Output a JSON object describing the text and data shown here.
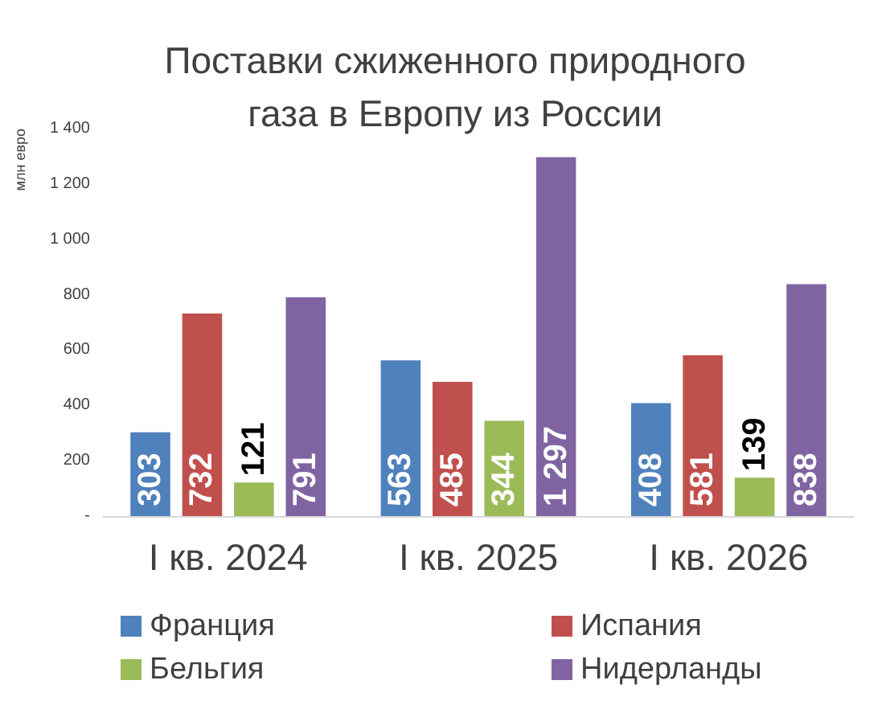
{
  "chart_data": {
    "type": "bar",
    "title": "Поставки сжиженного природного\nгаза в Европу из России",
    "ylabel": "млн евро",
    "categories": [
      "I кв. 2024",
      "I кв. 2025",
      "I кв. 2026"
    ],
    "series": [
      {
        "name": "Франция",
        "color": "#4f81bd",
        "values": [
          303,
          563,
          408
        ],
        "value_labels": [
          "303",
          "563",
          "408"
        ]
      },
      {
        "name": "Испания",
        "color": "#c0504d",
        "values": [
          732,
          485,
          581
        ],
        "value_labels": [
          "732",
          "485",
          "581"
        ]
      },
      {
        "name": "Бельгия",
        "color": "#9bbb59",
        "values": [
          121,
          344,
          139
        ],
        "value_labels": [
          "121",
          "344",
          "139"
        ]
      },
      {
        "name": "Нидерланды",
        "color": "#8064a2",
        "values": [
          791,
          1297,
          838
        ],
        "value_labels": [
          "791",
          "1 297",
          "838"
        ]
      }
    ],
    "ylim": [
      0,
      1400
    ],
    "yticks": [
      {
        "value": 0,
        "label": "-"
      },
      200,
      400,
      600,
      800,
      {
        "value": 1000,
        "label": "1 000"
      },
      {
        "value": 1200,
        "label": "1 200"
      },
      {
        "value": 1400,
        "label": "1 400"
      }
    ],
    "grid": false,
    "legend": "bottom"
  }
}
